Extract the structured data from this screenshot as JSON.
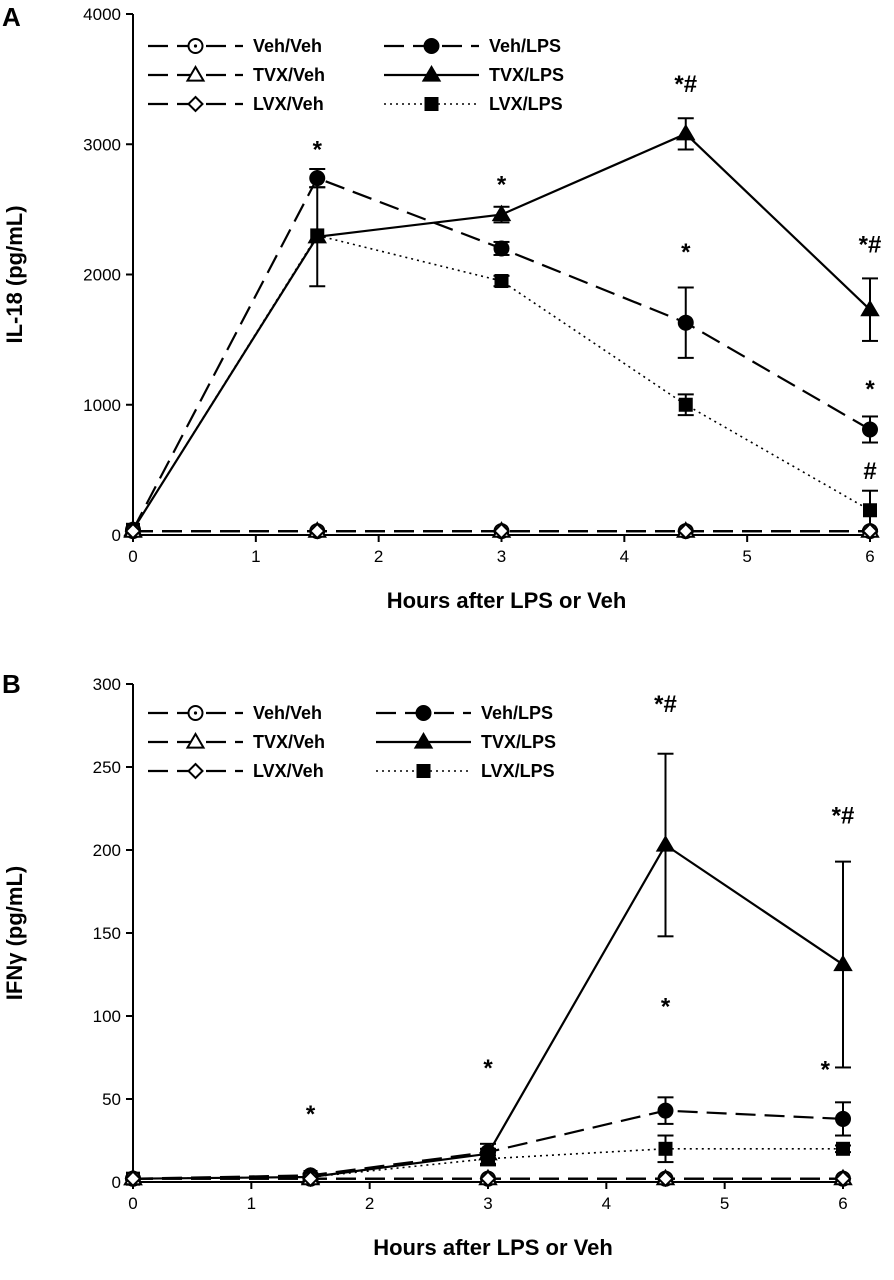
{
  "chart_data": [
    {
      "panel": "A",
      "type": "line",
      "xlabel": "Hours after LPS or Veh",
      "ylabel": "IL-18 (pg/mL)",
      "xlim": [
        0,
        6
      ],
      "ylim": [
        0,
        4000
      ],
      "xticks": [
        0,
        1,
        2,
        3,
        4,
        5,
        6
      ],
      "yticks": [
        0,
        1000,
        2000,
        3000,
        4000
      ],
      "grid": false,
      "legend_position": "top-left",
      "series": [
        {
          "name": "Veh/Veh",
          "style": "dashed",
          "marker": "circle-open",
          "x": [
            0,
            1.5,
            3,
            4.5,
            6
          ],
          "y": [
            30,
            30,
            30,
            30,
            30
          ],
          "err": [
            0,
            0,
            0,
            0,
            0
          ]
        },
        {
          "name": "TVX/Veh",
          "style": "dashed",
          "marker": "triangle-open",
          "x": [
            0,
            1.5,
            3,
            4.5,
            6
          ],
          "y": [
            30,
            30,
            30,
            30,
            30
          ],
          "err": [
            0,
            0,
            0,
            0,
            0
          ]
        },
        {
          "name": "LVX/Veh",
          "style": "dashed",
          "marker": "diamond-open",
          "x": [
            0,
            1.5,
            3,
            4.5,
            6
          ],
          "y": [
            30,
            30,
            30,
            30,
            30
          ],
          "err": [
            0,
            0,
            0,
            0,
            0
          ]
        },
        {
          "name": "Veh/LPS",
          "style": "dashed",
          "marker": "circle-filled",
          "x": [
            0,
            1.5,
            3,
            4.5,
            6
          ],
          "y": [
            40,
            2740,
            2200,
            1630,
            810
          ],
          "err": [
            0,
            70,
            50,
            270,
            100
          ]
        },
        {
          "name": "TVX/LPS",
          "style": "solid",
          "marker": "triangle-filled",
          "x": [
            0,
            1.5,
            3,
            4.5,
            6
          ],
          "y": [
            40,
            2290,
            2460,
            3080,
            1730
          ],
          "err": [
            0,
            380,
            60,
            120,
            240
          ]
        },
        {
          "name": "LVX/LPS",
          "style": "dotted",
          "marker": "square-filled",
          "x": [
            0,
            1.5,
            3,
            4.5,
            6
          ],
          "y": [
            40,
            2300,
            1950,
            1000,
            190
          ],
          "err": [
            0,
            0,
            40,
            80,
            150
          ]
        }
      ],
      "annotations": [
        {
          "text": "*",
          "x": 1.5,
          "y": 2900
        },
        {
          "text": "*",
          "x": 3,
          "y": 2630
        },
        {
          "text": "*#",
          "x": 4.5,
          "y": 3400
        },
        {
          "text": "*",
          "x": 4.5,
          "y": 2110
        },
        {
          "text": "*#",
          "x": 6,
          "y": 2170
        },
        {
          "text": "*",
          "x": 6,
          "y": 1060
        },
        {
          "text": "#",
          "x": 6,
          "y": 430
        }
      ]
    },
    {
      "panel": "B",
      "type": "line",
      "xlabel": "Hours after LPS or Veh",
      "ylabel": "IFNγ (pg/mL)",
      "xlim": [
        0,
        6
      ],
      "ylim": [
        0,
        300
      ],
      "xticks": [
        0,
        1,
        2,
        3,
        4,
        5,
        6
      ],
      "yticks": [
        0,
        50,
        100,
        150,
        200,
        250,
        300
      ],
      "grid": false,
      "legend_position": "top-left",
      "series": [
        {
          "name": "Veh/Veh",
          "style": "dashed",
          "marker": "circle-open",
          "x": [
            0,
            1.5,
            3,
            4.5,
            6
          ],
          "y": [
            2,
            2,
            2,
            2,
            2
          ],
          "err": [
            0,
            0,
            0,
            0,
            0
          ]
        },
        {
          "name": "TVX/Veh",
          "style": "dashed",
          "marker": "triangle-open",
          "x": [
            0,
            1.5,
            3,
            4.5,
            6
          ],
          "y": [
            2,
            2,
            2,
            2,
            2
          ],
          "err": [
            0,
            0,
            0,
            0,
            0
          ]
        },
        {
          "name": "LVX/Veh",
          "style": "dashed",
          "marker": "diamond-open",
          "x": [
            0,
            1.5,
            3,
            4.5,
            6
          ],
          "y": [
            2,
            2,
            2,
            2,
            2
          ],
          "err": [
            0,
            0,
            0,
            0,
            0
          ]
        },
        {
          "name": "Veh/LPS",
          "style": "dashed",
          "marker": "circle-filled",
          "x": [
            0,
            1.5,
            3,
            4.5,
            6
          ],
          "y": [
            2,
            4,
            18,
            43,
            38
          ],
          "err": [
            0,
            1,
            2,
            8,
            10
          ]
        },
        {
          "name": "TVX/LPS",
          "style": "solid",
          "marker": "triangle-filled",
          "x": [
            0,
            1.5,
            3,
            4.5,
            6
          ],
          "y": [
            2,
            3,
            17,
            203,
            131
          ],
          "err": [
            0,
            1,
            6,
            55,
            62
          ]
        },
        {
          "name": "LVX/LPS",
          "style": "dotted",
          "marker": "square-filled",
          "x": [
            0,
            1.5,
            3,
            4.5,
            6
          ],
          "y": [
            2,
            3,
            14,
            20,
            20
          ],
          "err": [
            0,
            1,
            4,
            8,
            2
          ]
        }
      ],
      "annotations": [
        {
          "text": "*",
          "x": 1.5,
          "y": 36
        },
        {
          "text": "*",
          "x": 3,
          "y": 64
        },
        {
          "text": "*#",
          "x": 4.5,
          "y": 283
        },
        {
          "text": "*",
          "x": 4.5,
          "y": 101
        },
        {
          "text": "*#",
          "x": 6,
          "y": 216
        },
        {
          "text": "*",
          "x": 5.85,
          "y": 63
        }
      ]
    }
  ]
}
